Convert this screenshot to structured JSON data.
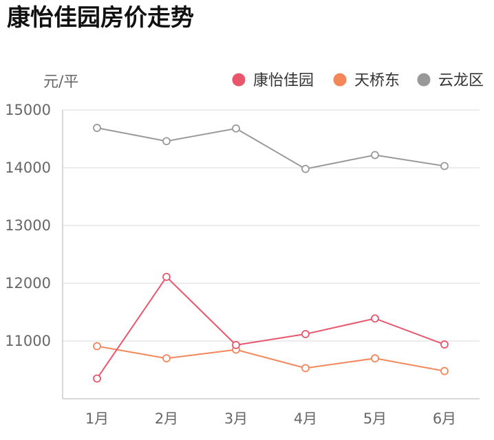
{
  "title": "康怡佳园房价走势",
  "chart_data": {
    "type": "line",
    "title": "康怡佳园房价走势",
    "ylabel": "元/平",
    "categories": [
      "1月",
      "2月",
      "3月",
      "4月",
      "5月",
      "6月"
    ],
    "ylim": [
      10000,
      15000
    ],
    "y_ticks": [
      11000,
      12000,
      13000,
      14000,
      15000
    ],
    "y_tick_labels": [
      "11000",
      "12000",
      "13000",
      "14000",
      "15000"
    ],
    "grid": true,
    "legend_position": "top-right",
    "series": [
      {
        "name": "康怡佳园",
        "color": "#e8566b",
        "values": [
          10350,
          12110,
          10930,
          11120,
          11390,
          10940
        ]
      },
      {
        "name": "天桥东",
        "color": "#f5865a",
        "values": [
          10910,
          10700,
          10850,
          10530,
          10700,
          10480
        ]
      },
      {
        "name": "云龙区",
        "color": "#999999",
        "values": [
          14690,
          14460,
          14680,
          13980,
          14220,
          14030
        ]
      }
    ]
  }
}
